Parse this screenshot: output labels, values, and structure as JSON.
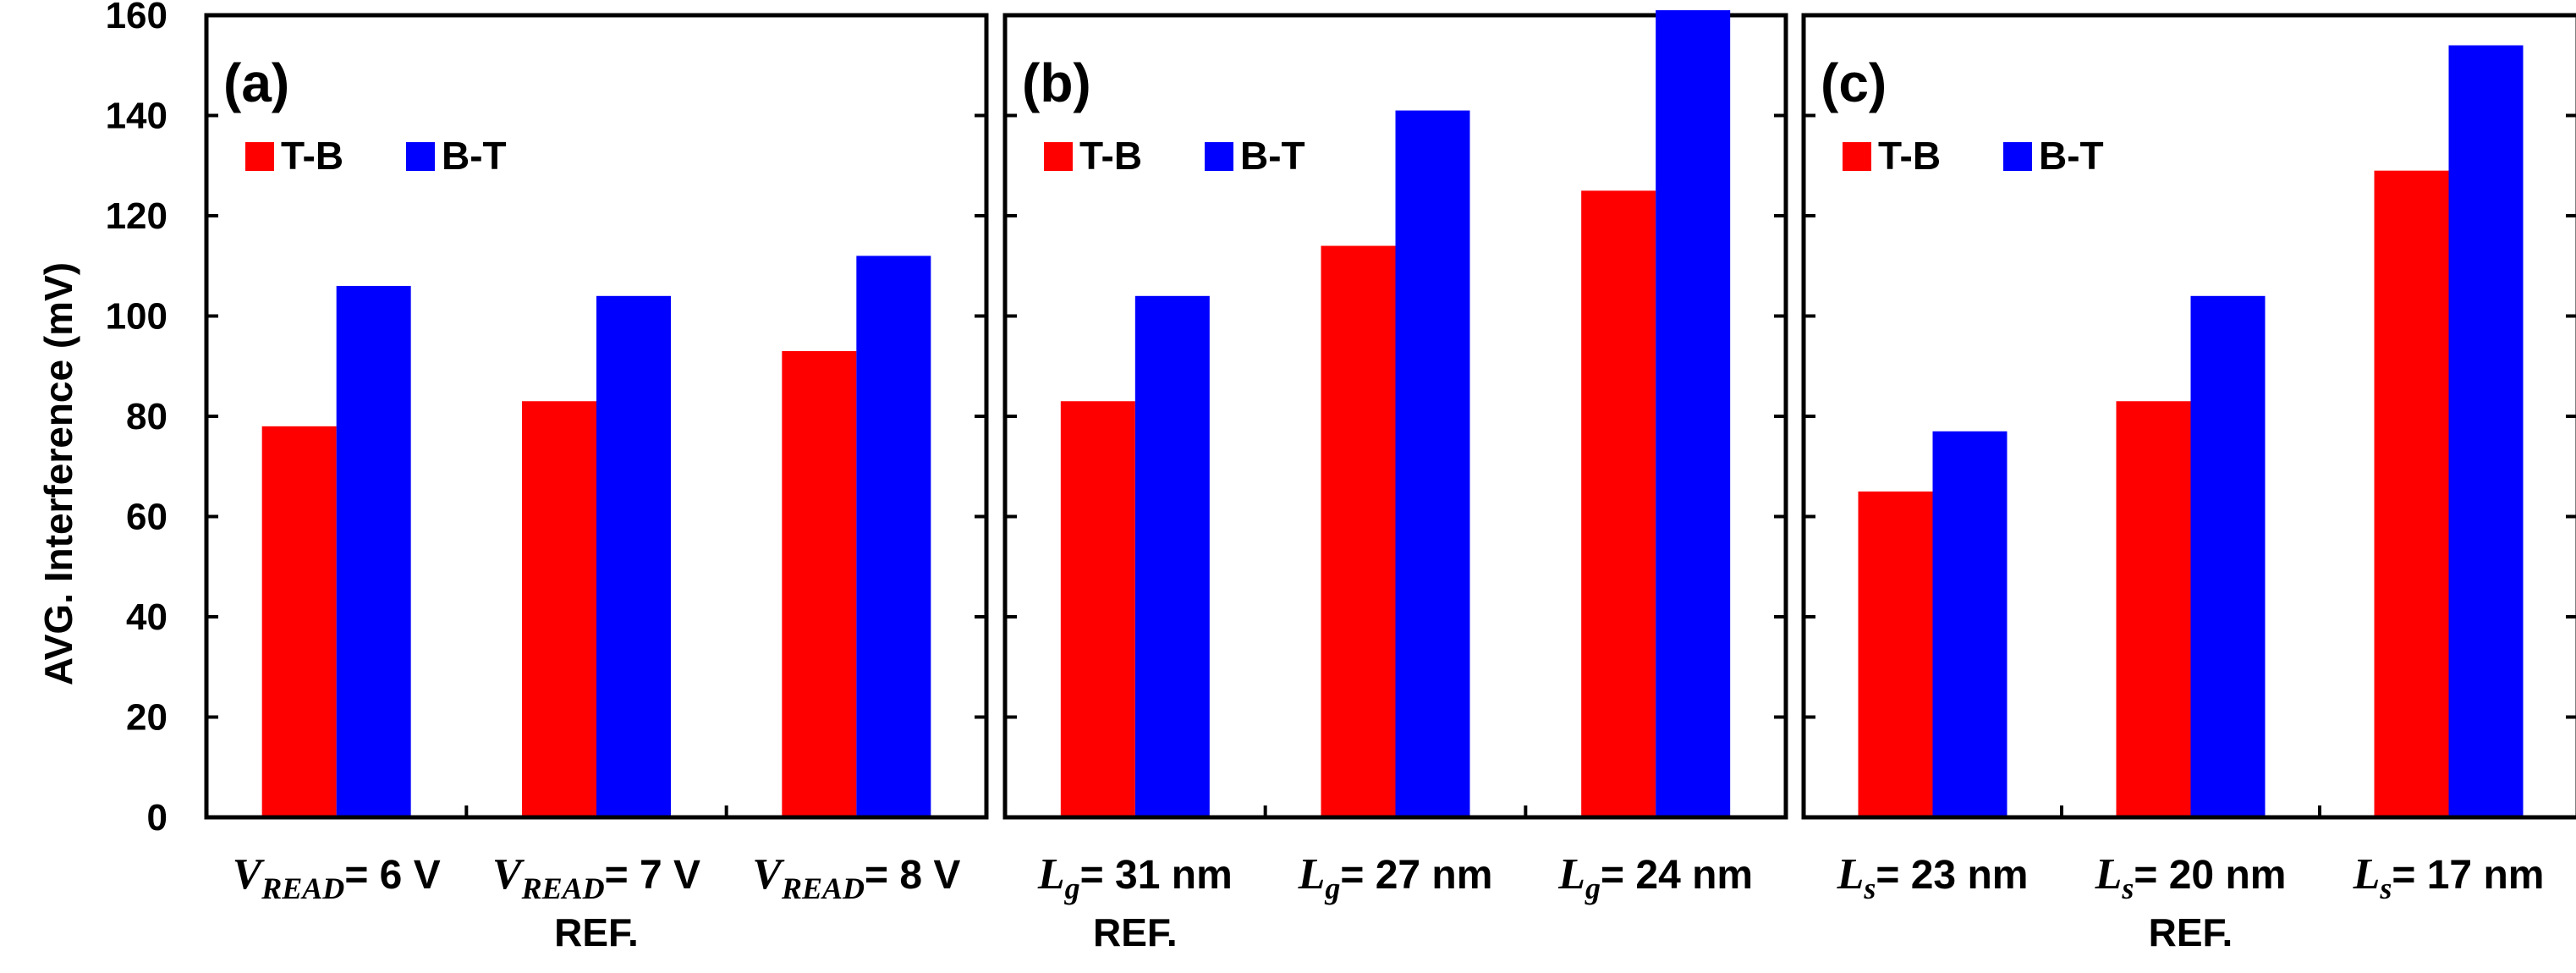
{
  "colors": {
    "t_b": "#ff0000",
    "b_t": "#0000ff",
    "axis": "#000000"
  },
  "y_axis": {
    "label": "AVG. Interference (mV)",
    "ylim": [
      0,
      160
    ],
    "ticks": [
      "0",
      "20",
      "40",
      "60",
      "80",
      "100",
      "120",
      "140",
      "160"
    ]
  },
  "chart_data": [
    {
      "type": "bar",
      "panel_label": "(a)",
      "legend": [
        "T-B",
        "B-T"
      ],
      "categories": [
        {
          "sym": "V",
          "sub": "READ",
          "text": "= 6 V",
          "ref": ""
        },
        {
          "sym": "V",
          "sub": "READ",
          "text": "= 7 V",
          "ref": "REF."
        },
        {
          "sym": "V",
          "sub": "READ",
          "text": "= 8 V",
          "ref": ""
        }
      ],
      "series": [
        {
          "name": "T-B",
          "values": [
            78,
            83,
            93
          ]
        },
        {
          "name": "B-T",
          "values": [
            106,
            104,
            112
          ]
        }
      ],
      "ylim": [
        0,
        160
      ]
    },
    {
      "type": "bar",
      "panel_label": "(b)",
      "legend": [
        "T-B",
        "B-T"
      ],
      "categories": [
        {
          "sym": "L",
          "sub": "g",
          "text": "= 31 nm",
          "ref": "REF."
        },
        {
          "sym": "L",
          "sub": "g",
          "text": "= 27 nm",
          "ref": ""
        },
        {
          "sym": "L",
          "sub": "g",
          "text": "= 24 nm",
          "ref": ""
        }
      ],
      "series": [
        {
          "name": "T-B",
          "values": [
            83,
            114,
            125
          ]
        },
        {
          "name": "B-T",
          "values": [
            104,
            141,
            161
          ]
        }
      ],
      "ylim": [
        0,
        160
      ]
    },
    {
      "type": "bar",
      "panel_label": "(c)",
      "legend": [
        "T-B",
        "B-T"
      ],
      "categories": [
        {
          "sym": "L",
          "sub": "s",
          "text": "= 23 nm",
          "ref": ""
        },
        {
          "sym": "L",
          "sub": "s",
          "text": "= 20 nm",
          "ref": "REF."
        },
        {
          "sym": "L",
          "sub": "s",
          "text": "= 17 nm",
          "ref": ""
        }
      ],
      "series": [
        {
          "name": "T-B",
          "values": [
            65,
            83,
            129
          ]
        },
        {
          "name": "B-T",
          "values": [
            77,
            104,
            154
          ]
        }
      ],
      "ylim": [
        0,
        160
      ]
    }
  ]
}
